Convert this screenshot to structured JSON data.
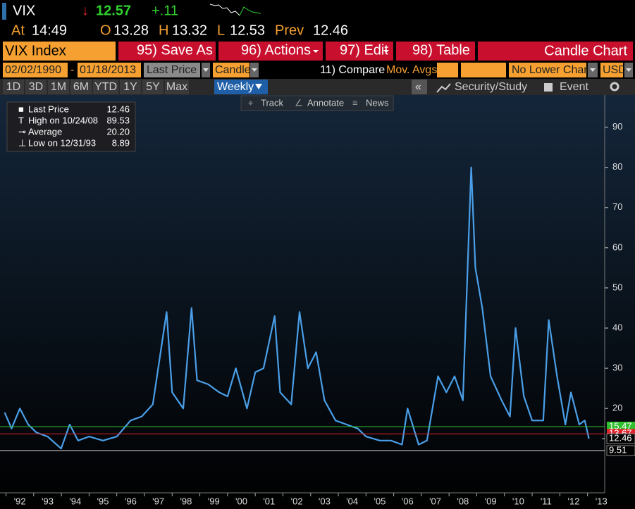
{
  "header": {
    "ticker": "VIX",
    "arrow": "↓",
    "price": "12.57",
    "change": "+.11",
    "time_label": "At",
    "time": "14:49",
    "open_label": "O",
    "open": "13.28",
    "high_label": "H",
    "high": "13.32",
    "low_label": "L",
    "low": "12.53",
    "prev_label": "Prev",
    "prev": "12.46"
  },
  "toolbar": {
    "security": "VIX Index",
    "buttons": [
      "95) Save As",
      "96) Actions",
      "97) Edit",
      "98) Table"
    ],
    "chart_type": "Candle Chart"
  },
  "controls": {
    "start_date": "02/02/1990",
    "dash": "-",
    "end_date": "01/18/2013",
    "field": "Last Price",
    "style": "Candle",
    "compare": "11) Compare",
    "mov_avgs": "Mov. Avgs",
    "lower": "No Lower Chart",
    "currency": "USD"
  },
  "periods": [
    "1D",
    "3D",
    "1M",
    "6M",
    "YTD",
    "1Y",
    "5Y",
    "Max"
  ],
  "frequency": "Weekly",
  "study": "Security/Study",
  "event": "Event",
  "chart_tools": [
    "Track",
    "Annotate",
    "News"
  ],
  "legend": [
    {
      "label": "Last Price",
      "value": "12.46"
    },
    {
      "label": "High on 10/24/08",
      "value": "89.53"
    },
    {
      "label": "Average",
      "value": "20.20"
    },
    {
      "label": "Low on 12/31/93",
      "value": "8.89"
    }
  ],
  "chart_data": {
    "type": "line",
    "color": "#4a9fe8",
    "x": [
      1991.95,
      1992.2,
      1992.5,
      1992.8,
      1993.1,
      1993.5,
      1993.99,
      1994.3,
      1994.6,
      1995.0,
      1995.5,
      1996.0,
      1996.5,
      1996.9,
      1997.3,
      1997.8,
      1998.0,
      1998.4,
      1998.7,
      1998.9,
      1999.3,
      1999.7,
      2000.0,
      2000.3,
      2000.7,
      2001.0,
      2001.3,
      2001.7,
      2001.9,
      2002.3,
      2002.6,
      2002.9,
      2003.2,
      2003.5,
      2003.9,
      2004.3,
      2004.7,
      2005.0,
      2005.5,
      2005.9,
      2006.3,
      2006.5,
      2006.9,
      2007.2,
      2007.6,
      2007.9,
      2008.2,
      2008.5,
      2008.8,
      2008.95,
      2009.2,
      2009.5,
      2009.9,
      2010.2,
      2010.4,
      2010.7,
      2011.0,
      2011.4,
      2011.6,
      2011.9,
      2012.2,
      2012.4,
      2012.7,
      2012.9,
      2013.05
    ],
    "values": [
      19,
      15,
      20,
      16,
      14,
      13,
      10,
      16,
      12,
      13,
      12,
      13,
      17,
      18,
      21,
      44,
      24,
      20,
      45,
      27,
      26,
      24,
      23,
      30,
      20,
      29,
      30,
      43,
      24,
      21,
      44,
      30,
      34,
      22,
      17,
      16,
      15,
      13,
      12,
      12,
      11,
      20,
      11,
      12,
      28,
      24,
      28,
      22,
      80,
      55,
      45,
      28,
      22,
      18,
      40,
      23,
      17,
      17,
      42,
      28,
      16,
      24,
      16,
      17,
      12.5
    ],
    "xlim": [
      1991.91,
      2013.62
    ],
    "xticks": [
      {
        "value": 1992,
        "label": "'92"
      },
      {
        "value": 1993,
        "label": "'93"
      },
      {
        "value": 1994,
        "label": "'94"
      },
      {
        "value": 1995,
        "label": "'95"
      },
      {
        "value": 1996,
        "label": "'96"
      },
      {
        "value": 1997,
        "label": "'97"
      },
      {
        "value": 1998,
        "label": "'98"
      },
      {
        "value": 1999,
        "label": "'99"
      },
      {
        "value": 2000,
        "label": "'00"
      },
      {
        "value": 2001,
        "label": "'01"
      },
      {
        "value": 2002,
        "label": "'02"
      },
      {
        "value": 2003,
        "label": "'03"
      },
      {
        "value": 2004,
        "label": "'04"
      },
      {
        "value": 2005,
        "label": "'05"
      },
      {
        "value": 2006,
        "label": "'06"
      },
      {
        "value": 2007,
        "label": "'07"
      },
      {
        "value": 2008,
        "label": "'08"
      },
      {
        "value": 2009,
        "label": "'09"
      },
      {
        "value": 2010,
        "label": "'10"
      },
      {
        "value": 2011,
        "label": "'11"
      },
      {
        "value": 2012,
        "label": "'12"
      },
      {
        "value": 2013,
        "label": "'13"
      }
    ],
    "ylim": [
      -1,
      98
    ],
    "yticks": [
      20,
      30,
      40,
      50,
      60,
      70,
      80,
      90
    ],
    "reference_lines": [
      {
        "value": 15.47,
        "color": "#2fbf2f"
      },
      {
        "value": 13.67,
        "color": "#e0202a"
      },
      {
        "value": 12.46,
        "color": "#dddddd"
      },
      {
        "value": 9.51,
        "color": "#dddddd"
      }
    ]
  }
}
